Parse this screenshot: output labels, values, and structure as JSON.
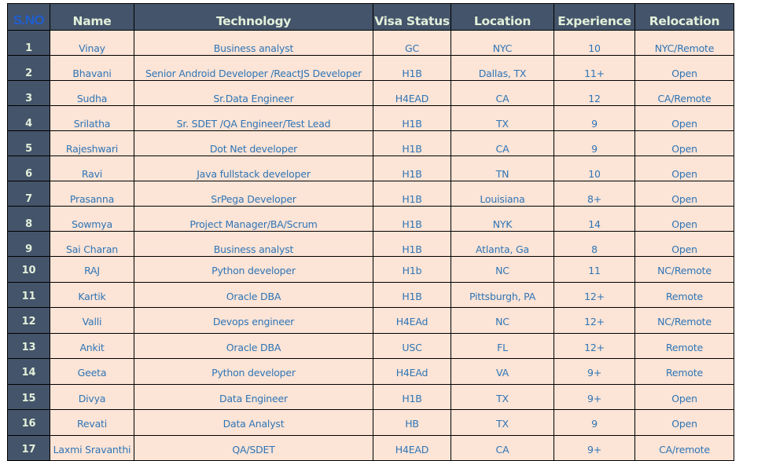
{
  "table": {
    "columns": [
      {
        "key": "sno",
        "label": "S.NO"
      },
      {
        "key": "name",
        "label": "Name"
      },
      {
        "key": "technology",
        "label": "Technology"
      },
      {
        "key": "visa",
        "label": "Visa Status"
      },
      {
        "key": "location",
        "label": "Location"
      },
      {
        "key": "experience",
        "label": "Experience"
      },
      {
        "key": "relocation",
        "label": "Relocation"
      }
    ],
    "rows": [
      {
        "sno": "1",
        "name": "Vinay",
        "technology": "Business analyst",
        "visa": "GC",
        "location": "NYC",
        "experience": "10",
        "relocation": "NYC/Remote"
      },
      {
        "sno": "2",
        "name": "Bhavani",
        "technology": "Senior Android Developer /ReactJS Developer",
        "visa": "H1B",
        "location": "Dallas, TX",
        "experience": "11+",
        "relocation": "Open"
      },
      {
        "sno": "3",
        "name": "Sudha",
        "technology": "Sr.Data Engineer",
        "visa": "H4EAD",
        "location": "CA",
        "experience": "12",
        "relocation": "CA/Remote"
      },
      {
        "sno": "4",
        "name": "Srilatha",
        "technology": "Sr. SDET /QA Engineer/Test Lead",
        "visa": "H1B",
        "location": "TX",
        "experience": "9",
        "relocation": "Open"
      },
      {
        "sno": "5",
        "name": "Rajeshwari",
        "technology": "Dot Net developer",
        "visa": "H1B",
        "location": "CA",
        "experience": "9",
        "relocation": "Open"
      },
      {
        "sno": "6",
        "name": "Ravi",
        "technology": "Java fullstack developer",
        "visa": "H1B",
        "location": "TN",
        "experience": "10",
        "relocation": "Open"
      },
      {
        "sno": "7",
        "name": "Prasanna",
        "technology": "SrPega Developer",
        "visa": "H1B",
        "location": "Louisiana",
        "experience": "8+",
        "relocation": "Open"
      },
      {
        "sno": "8",
        "name": "Sowmya",
        "technology": "Project Manager/BA/Scrum",
        "visa": "H1B",
        "location": "NYK",
        "experience": "14",
        "relocation": "Open"
      },
      {
        "sno": "9",
        "name": "Sai Charan",
        "technology": "Business analyst",
        "visa": "H1B",
        "location": "Atlanta, Ga",
        "experience": "8",
        "relocation": "Open"
      },
      {
        "sno": "10",
        "name": "RAJ",
        "technology": "Python developer",
        "visa": "H1b",
        "location": "NC",
        "experience": "11",
        "relocation": "NC/Remote"
      },
      {
        "sno": "11",
        "name": "Kartik",
        "technology": "Oracle DBA",
        "visa": "H1B",
        "location": "Pittsburgh, PA",
        "experience": "12+",
        "relocation": "Remote"
      },
      {
        "sno": "12",
        "name": "Valli",
        "technology": "Devops engineer",
        "visa": "H4EAd",
        "location": "NC",
        "experience": "12+",
        "relocation": "NC/Remote"
      },
      {
        "sno": "13",
        "name": "Ankit",
        "technology": "Oracle DBA",
        "visa": "USC",
        "location": "FL",
        "experience": "12+",
        "relocation": "Remote"
      },
      {
        "sno": "14",
        "name": "Geeta",
        "technology": "Python developer",
        "visa": "H4EAd",
        "location": "VA",
        "experience": "9+",
        "relocation": "Remote"
      },
      {
        "sno": "15",
        "name": "Divya",
        "technology": "Data Engineer",
        "visa": "H1B",
        "location": "TX",
        "experience": "9+",
        "relocation": "Open"
      },
      {
        "sno": "16",
        "name": "Revati",
        "technology": "Data Analyst",
        "visa": "HB",
        "location": "TX",
        "experience": "9",
        "relocation": "Open"
      },
      {
        "sno": "17",
        "name": "Laxmi Sravanthi",
        "technology": "QA/SDET",
        "visa": "H4EAD",
        "location": "CA",
        "experience": "9+",
        "relocation": "CA/remote"
      }
    ]
  },
  "colors": {
    "header_bg": "#44546a",
    "header_text": "#e2efda",
    "sno_header_text": "#1f5fd0",
    "cell_bg": "#fce4d6",
    "cell_text": "#2e75b6",
    "border": "#000000"
  }
}
